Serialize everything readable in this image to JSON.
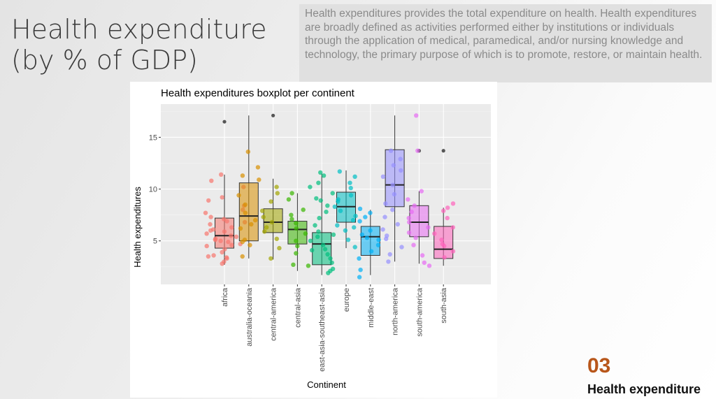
{
  "slide": {
    "title_line1": "Health expenditure",
    "title_line2": "(by % of GDP)",
    "description": "Health expenditures provides the total expenditure on health. Health expenditures are broadly defined as activities performed either by institutions or individuals through the application of medical, paramedical, and/or nursing knowledge and technology, the primary purpose of which is to promote, restore, or maintain health.",
    "section_number": "03",
    "section_label": "Health expenditure"
  },
  "chart_data": {
    "type": "boxplot",
    "title": "Health expenditures boxplot per continent",
    "xlabel": "Continent",
    "ylabel": "Health expenditures",
    "ylim": [
      0.8,
      18.2
    ],
    "yticks": [
      5,
      10,
      15
    ],
    "grid": true,
    "legend": "none",
    "categories": [
      {
        "name": "africa",
        "color": "#F8766D",
        "min": 2.7,
        "q1": 4.3,
        "median": 5.5,
        "q3": 7.2,
        "max": 11.4,
        "outliers": [
          16.5
        ],
        "points": [
          3.0,
          3.3,
          3.5,
          3.6,
          3.9,
          4.2,
          4.5,
          4.7,
          4.9,
          5.0,
          5.2,
          5.4,
          5.5,
          5.7,
          5.9,
          6.1,
          6.3,
          6.6,
          6.9,
          7.1,
          7.3,
          7.7,
          8.0,
          8.4,
          8.9,
          9.2,
          10.2,
          10.8,
          11.4,
          3.4,
          4.6,
          5.1,
          6.0,
          6.8,
          2.8
        ]
      },
      {
        "name": "australia-oceania",
        "color": "#D89000",
        "min": 3.3,
        "q1": 5.0,
        "median": 7.4,
        "q3": 10.6,
        "max": 17.1,
        "outliers": [],
        "points": [
          3.5,
          4.6,
          5.1,
          6.2,
          7.0,
          7.7,
          8.5,
          9.4,
          10.9,
          11.3,
          12.1,
          13.6,
          4.9,
          6.6
        ]
      },
      {
        "name": "central-america",
        "color": "#A3A500",
        "min": 3.2,
        "q1": 5.8,
        "median": 6.8,
        "q3": 8.1,
        "max": 11.0,
        "outliers": [
          17.1
        ],
        "points": [
          3.3,
          4.3,
          5.2,
          5.9,
          6.3,
          6.8,
          7.3,
          7.9,
          8.8,
          9.6,
          10.2
        ]
      },
      {
        "name": "central-asia",
        "color": "#39B600",
        "min": 2.1,
        "q1": 4.7,
        "median": 6.1,
        "q3": 6.9,
        "max": 9.6,
        "outliers": [],
        "points": [
          2.6,
          2.7,
          3.8,
          4.5,
          5.0,
          5.7,
          6.2,
          6.7,
          7.1,
          7.5,
          8.0,
          9.0,
          9.6
        ]
      },
      {
        "name": "east-asia-southeast-asia",
        "color": "#00BF7D",
        "min": 1.7,
        "q1": 2.7,
        "median": 4.7,
        "q3": 5.8,
        "max": 11.5,
        "outliers": [],
        "points": [
          1.9,
          2.1,
          2.3,
          2.9,
          3.3,
          3.7,
          4.2,
          4.6,
          5.0,
          5.4,
          5.9,
          6.5,
          7.2,
          7.8,
          8.4,
          9.1,
          9.6,
          10.2,
          10.6,
          11.3,
          11.6,
          4.1,
          5.6,
          8.9
        ]
      },
      {
        "name": "europe",
        "color": "#00BFC4",
        "min": 4.3,
        "q1": 6.8,
        "median": 8.3,
        "q3": 9.7,
        "max": 11.8,
        "outliers": [],
        "points": [
          4.4,
          5.1,
          6.0,
          6.5,
          7.0,
          7.4,
          7.9,
          8.3,
          8.8,
          9.4,
          10.1,
          10.6,
          11.2,
          11.7,
          6.3,
          9.0
        ]
      },
      {
        "name": "middle-east",
        "color": "#00B0F6",
        "min": 1.7,
        "q1": 3.6,
        "median": 5.4,
        "q3": 6.4,
        "max": 8.0,
        "outliers": [],
        "points": [
          1.5,
          2.2,
          3.3,
          4.0,
          4.6,
          5.1,
          5.6,
          6.0,
          6.9,
          7.3,
          7.7,
          8.1,
          5.3
        ]
      },
      {
        "name": "north-america",
        "color": "#9590FF",
        "min": 3.0,
        "q1": 8.3,
        "median": 10.4,
        "q3": 13.8,
        "max": 17.1,
        "outliers": [],
        "points": [
          3.0,
          3.7,
          4.4,
          5.2,
          5.5,
          6.1,
          6.6,
          7.3,
          8.0,
          8.6,
          9.5,
          10.4,
          11.2,
          11.8,
          12.3,
          12.9,
          13.7
        ]
      },
      {
        "name": "south-america",
        "color": "#E76BF3",
        "min": 2.8,
        "q1": 5.4,
        "median": 6.8,
        "q3": 8.4,
        "max": 9.8,
        "outliers": [
          13.7
        ],
        "points": [
          2.6,
          2.9,
          3.6,
          4.6,
          5.3,
          5.8,
          6.3,
          6.8,
          7.2,
          7.8,
          8.4,
          9.0,
          9.8,
          13.7,
          17.1
        ]
      },
      {
        "name": "south-asia",
        "color": "#FF62BC",
        "min": 2.6,
        "q1": 3.3,
        "median": 4.2,
        "q3": 6.4,
        "max": 8.2,
        "outliers": [
          13.7
        ],
        "points": [
          3.4,
          4.0,
          4.5,
          5.1,
          5.7,
          6.3,
          7.2,
          7.9,
          8.6,
          8.2,
          4.7
        ]
      }
    ]
  }
}
